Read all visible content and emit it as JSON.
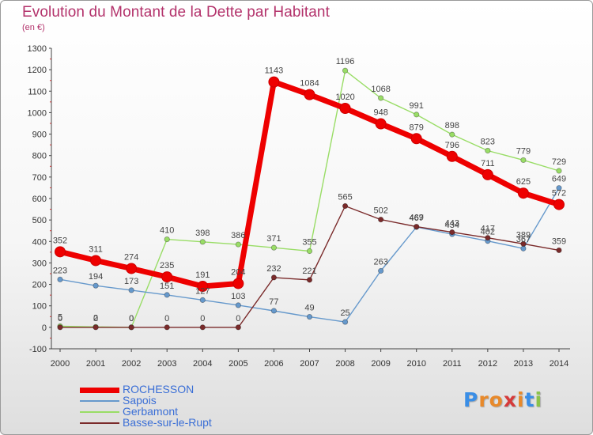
{
  "header": {
    "title": "Evolution du Montant de la Dette par Habitant",
    "subtitle": "(en €)"
  },
  "logo": {
    "letters": [
      "P",
      "r",
      "o",
      "x",
      "i",
      "t",
      "i"
    ],
    "colors": [
      "#3a8ee6",
      "#e8892a",
      "#e8892a",
      "#d63a3a",
      "#e8892a",
      "#3a8ee6",
      "#8bc34a"
    ]
  },
  "chart_data": {
    "type": "line",
    "x": [
      2000,
      2001,
      2002,
      2003,
      2004,
      2005,
      2006,
      2007,
      2008,
      2009,
      2010,
      2011,
      2012,
      2013,
      2014
    ],
    "ylim": [
      -100,
      1300
    ],
    "yticks": [
      -100,
      0,
      100,
      200,
      300,
      400,
      500,
      600,
      700,
      800,
      900,
      1000,
      1100,
      1200,
      1300
    ],
    "grid": false,
    "legend_position": "bottom-left",
    "series": [
      {
        "name": "ROCHESSON",
        "color": "#ee0000",
        "values": [
          352,
          311,
          274,
          235,
          191,
          204,
          1143,
          1084,
          1020,
          948,
          879,
          796,
          711,
          625,
          572
        ]
      },
      {
        "name": "Sapois",
        "color": "#6699cc",
        "values": [
          223,
          194,
          173,
          151,
          127,
          103,
          77,
          49,
          25,
          263,
          467,
          434,
          402,
          367,
          649
        ]
      },
      {
        "name": "Gerbamont",
        "color": "#99dd66",
        "values": [
          5,
          2,
          0,
          410,
          398,
          386,
          371,
          355,
          1196,
          1068,
          991,
          898,
          823,
          779,
          729
        ]
      },
      {
        "name": "Basse-sur-le-Rupt",
        "color": "#7a2a2a",
        "values": [
          0,
          0,
          0,
          0,
          0,
          0,
          232,
          221,
          565,
          502,
          469,
          443,
          417,
          389,
          359
        ]
      }
    ]
  }
}
